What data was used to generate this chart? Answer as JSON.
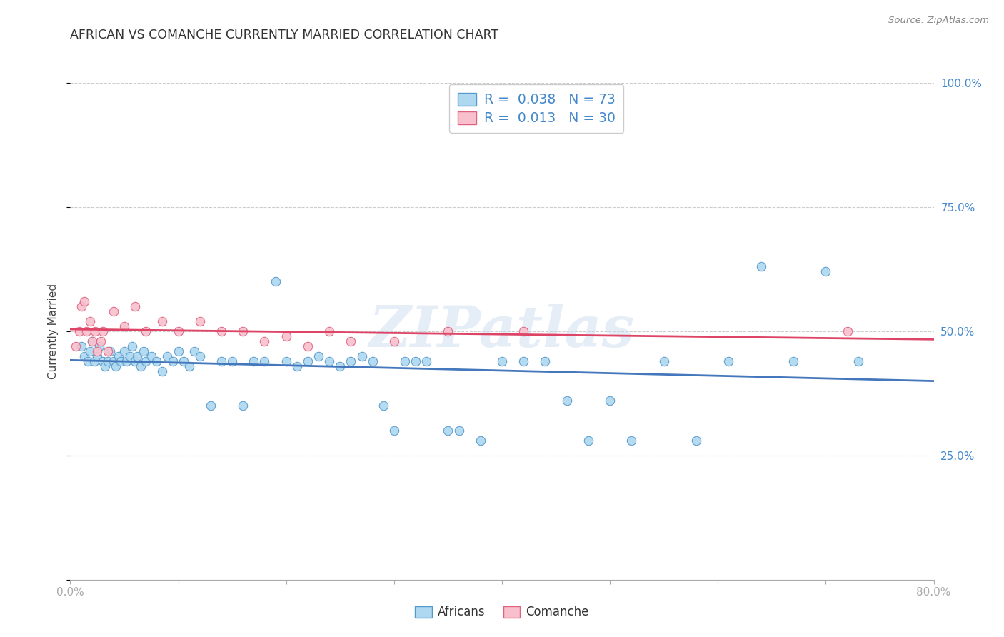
{
  "title": "AFRICAN VS COMANCHE CURRENTLY MARRIED CORRELATION CHART",
  "source_text": "Source: ZipAtlas.com",
  "ylabel": "Currently Married",
  "xlim": [
    0.0,
    0.8
  ],
  "ylim": [
    0.0,
    1.0
  ],
  "xticks": [
    0.0,
    0.1,
    0.2,
    0.3,
    0.4,
    0.5,
    0.6,
    0.7,
    0.8
  ],
  "xticklabels": [
    "0.0%",
    "",
    "",
    "",
    "",
    "",
    "",
    "",
    "80.0%"
  ],
  "yticks": [
    0.0,
    0.25,
    0.5,
    0.75,
    1.0
  ],
  "yticklabels_left": [
    "",
    "",
    "",
    "",
    ""
  ],
  "yticklabels_right": [
    "",
    "25.0%",
    "50.0%",
    "75.0%",
    "100.0%"
  ],
  "watermark": "ZIPatlas",
  "R1": "0.038",
  "N1": "73",
  "R2": "0.013",
  "N2": "30",
  "color_african_fill": "#add8f0",
  "color_african_edge": "#5599cc",
  "color_comanche_fill": "#f8c0cc",
  "color_comanche_edge": "#e06080",
  "color_african_line": "#4477bb",
  "color_comanche_line": "#dd4466",
  "legend_box_color": "#ccddee",
  "legend_box_color2": "#f0c0cc",
  "africans_x": [
    0.01,
    0.013,
    0.016,
    0.018,
    0.02,
    0.022,
    0.025,
    0.027,
    0.03,
    0.032,
    0.035,
    0.037,
    0.04,
    0.042,
    0.045,
    0.047,
    0.05,
    0.052,
    0.055,
    0.057,
    0.06,
    0.062,
    0.065,
    0.068,
    0.07,
    0.075,
    0.08,
    0.085,
    0.09,
    0.095,
    0.1,
    0.105,
    0.11,
    0.115,
    0.12,
    0.13,
    0.14,
    0.15,
    0.16,
    0.17,
    0.18,
    0.19,
    0.2,
    0.21,
    0.22,
    0.23,
    0.24,
    0.25,
    0.26,
    0.27,
    0.28,
    0.29,
    0.3,
    0.31,
    0.32,
    0.33,
    0.35,
    0.36,
    0.38,
    0.4,
    0.42,
    0.44,
    0.46,
    0.48,
    0.5,
    0.52,
    0.55,
    0.58,
    0.61,
    0.64,
    0.67,
    0.7,
    0.73
  ],
  "africans_y": [
    0.47,
    0.45,
    0.44,
    0.46,
    0.48,
    0.44,
    0.45,
    0.47,
    0.44,
    0.43,
    0.44,
    0.46,
    0.44,
    0.43,
    0.45,
    0.44,
    0.46,
    0.44,
    0.45,
    0.47,
    0.44,
    0.45,
    0.43,
    0.46,
    0.44,
    0.45,
    0.44,
    0.42,
    0.45,
    0.44,
    0.46,
    0.44,
    0.43,
    0.46,
    0.45,
    0.35,
    0.44,
    0.44,
    0.35,
    0.44,
    0.44,
    0.6,
    0.44,
    0.43,
    0.44,
    0.45,
    0.44,
    0.43,
    0.44,
    0.45,
    0.44,
    0.35,
    0.3,
    0.44,
    0.44,
    0.44,
    0.3,
    0.3,
    0.28,
    0.44,
    0.44,
    0.44,
    0.36,
    0.28,
    0.36,
    0.28,
    0.44,
    0.28,
    0.44,
    0.63,
    0.44,
    0.62,
    0.44
  ],
  "comanche_x": [
    0.005,
    0.008,
    0.01,
    0.013,
    0.015,
    0.018,
    0.02,
    0.023,
    0.025,
    0.028,
    0.03,
    0.035,
    0.04,
    0.05,
    0.06,
    0.07,
    0.085,
    0.1,
    0.12,
    0.14,
    0.16,
    0.18,
    0.2,
    0.22,
    0.24,
    0.26,
    0.3,
    0.35,
    0.42,
    0.72
  ],
  "comanche_y": [
    0.47,
    0.5,
    0.55,
    0.56,
    0.5,
    0.52,
    0.48,
    0.5,
    0.46,
    0.48,
    0.5,
    0.46,
    0.54,
    0.51,
    0.55,
    0.5,
    0.52,
    0.5,
    0.52,
    0.5,
    0.5,
    0.48,
    0.49,
    0.47,
    0.5,
    0.48,
    0.48,
    0.5,
    0.5,
    0.5
  ]
}
